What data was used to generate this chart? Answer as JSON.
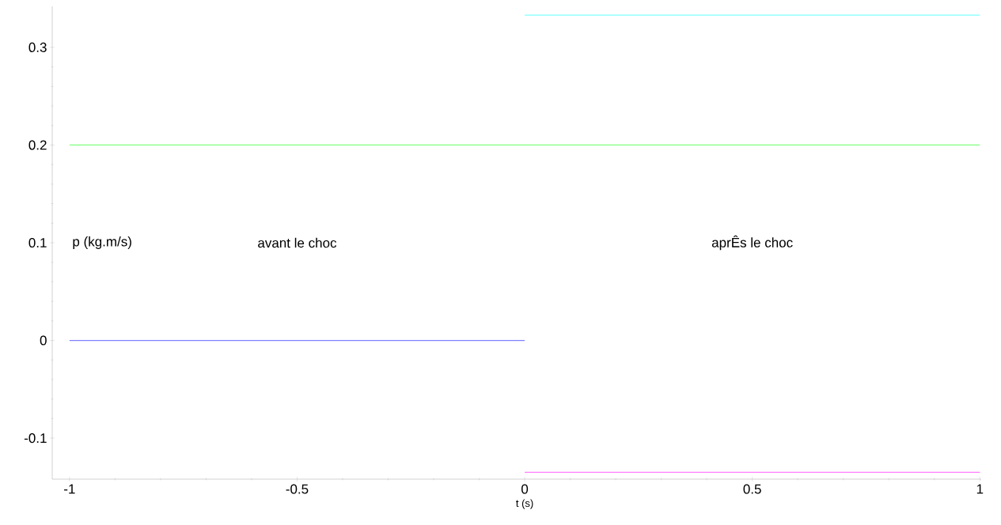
{
  "chart_data": {
    "type": "line",
    "ylabel": "p (kg.m/s)",
    "xlabel": "t (s)",
    "annotations": [
      "avant le choc",
      "aprÊs le choc"
    ],
    "series": [
      {
        "color": "#8080ff",
        "x": [
          -1,
          0
        ],
        "values": [
          0,
          0
        ]
      },
      {
        "color": "#80ff80",
        "x": [
          -1,
          1
        ],
        "values": [
          0.2,
          0.2
        ]
      },
      {
        "color": "#80ffff",
        "x": [
          0,
          1
        ],
        "values": [
          0.333,
          0.333
        ]
      },
      {
        "color": "#ff80ff",
        "x": [
          0,
          1
        ],
        "values": [
          -0.135,
          -0.135
        ]
      }
    ],
    "xlim": [
      -1.038,
      1.003
    ],
    "ylim": [
      -0.142,
      0.342
    ],
    "xticks": [
      -1,
      -0.5,
      0,
      0.5,
      1
    ],
    "yticks": [
      -0.1,
      0,
      0.1,
      0.2,
      0.3
    ],
    "marker": "none",
    "line_style": "solid"
  }
}
